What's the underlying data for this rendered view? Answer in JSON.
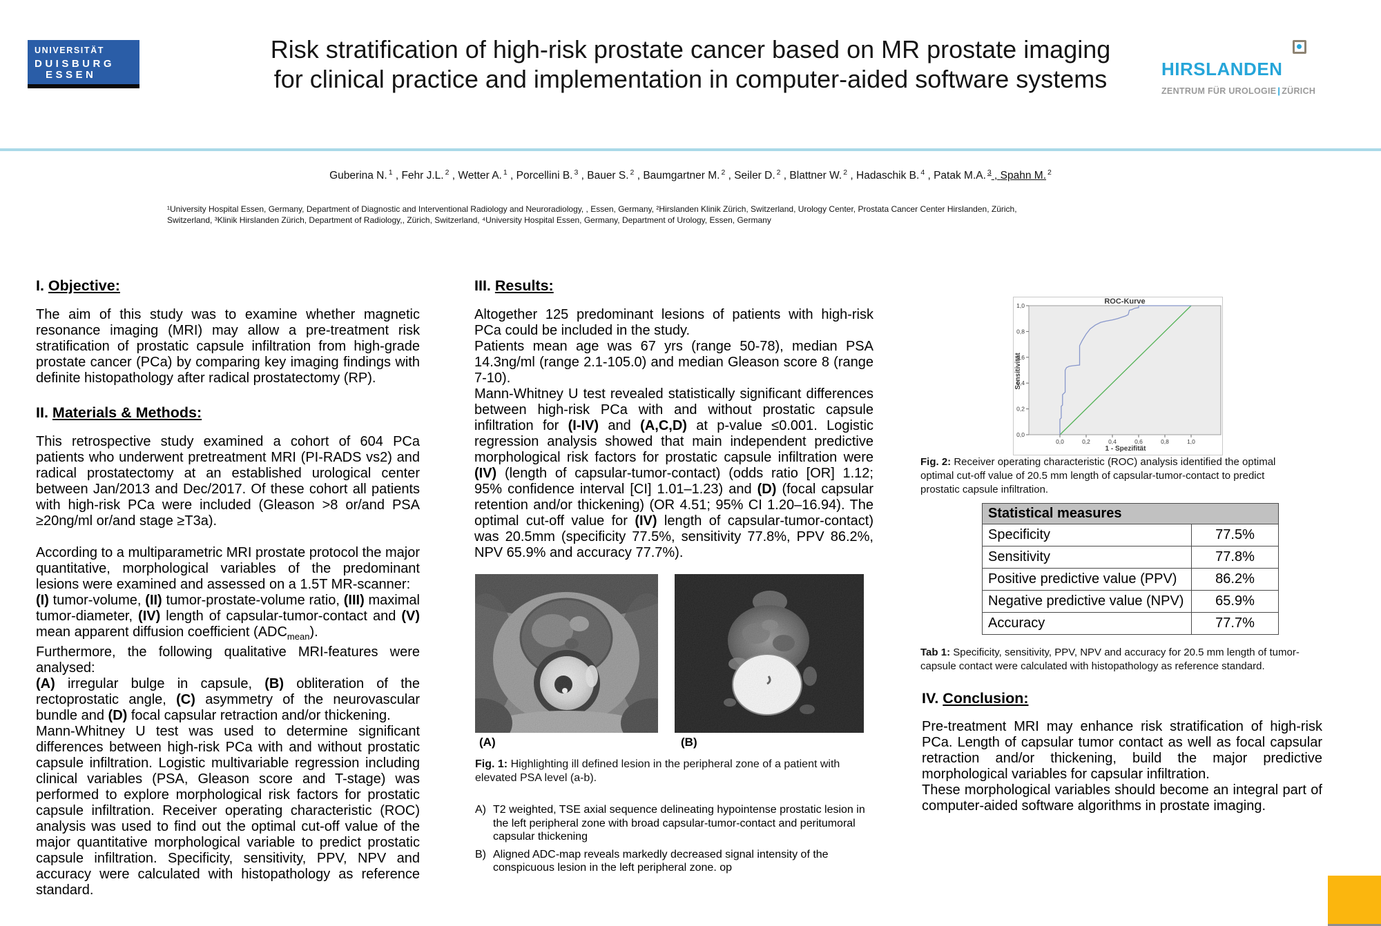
{
  "colors": {
    "due-blue": "#2a5da7",
    "hirs-cyan": "#25a5d9",
    "divider": "#a9d9e8",
    "thead-bg": "#c1c1c1",
    "accent-yellow": "#fbb60e"
  },
  "header": {
    "logo_left": {
      "line1": "UNIVERSITÄT",
      "line2": "DUISBURG",
      "line3": "ESSEN"
    },
    "title_line1": "Risk stratification of high-risk prostate cancer based on MR prostate imaging",
    "title_line2": "for clinical practice and implementation in computer-aided software systems",
    "logo_right": {
      "name": "HIRSLANDEN",
      "icon": "square-dot-logo-mark",
      "subtitle_left": "ZENTRUM FÜR UROLOGIE",
      "divider": "|",
      "subtitle_right": "ZÜRICH"
    }
  },
  "authors": [
    {
      "name": "Guberina N.",
      "sup": "1"
    },
    {
      "name": "Fehr J.L.",
      "sup": "2"
    },
    {
      "name": "Wetter A.",
      "sup": "1"
    },
    {
      "name": "Porcellini B.",
      "sup": "3"
    },
    {
      "name": "Bauer S.",
      "sup": "2"
    },
    {
      "name": "Baumgartner M.",
      "sup": "2"
    },
    {
      "name": "Seiler D.",
      "sup": "2"
    },
    {
      "name": "Blattner W.",
      "sup": "2"
    },
    {
      "name": "Hadaschik B.",
      "sup": "4"
    },
    {
      "name": "Patak M.A.",
      "sup": "3",
      "u": true
    },
    {
      "name": "Spahn M.",
      "sup": "2",
      "u_name": true
    }
  ],
  "affiliations": {
    "line1": "¹University Hospital Essen, Germany, Department of Diagnostic and Interventional Radiology and Neuroradiology, , Essen, Germany, ²Hirslanden Klinik Zürich, Switzerland, Urology Center, Prostata Cancer Center Hirslanden, Zürich,",
    "line2": "Switzerland, ³Klinik Hirslanden Zürich, Department of Radiology,, Zürich, Switzerland, ⁴University Hospital Essen, Germany, Department of Urology, Essen, Germany"
  },
  "sections": {
    "objective": {
      "heading_num": "I. ",
      "heading": "Objective:",
      "paragraphs": [
        {
          "segments": [
            {
              "t": "The aim of this study was to examine whether magnetic resonance imaging (MRI) may allow a pre-treatment risk stratification of prostatic capsule infiltration from high-grade prostate cancer (PCa) by comparing key imaging findings with definite histopathology after radical prostatectomy (RP)."
            }
          ]
        }
      ]
    },
    "methods": {
      "heading_num": "II. ",
      "heading": "Materials & Methods:",
      "paragraphs": [
        {
          "segments": [
            {
              "t": "This retrospective study examined a cohort of 604 PCa patients who underwent pretreatment MRI (PI-RADS vs2) and radical prostatectomy at an established urological center between Jan/2013 and Dec/2017. Of these cohort all patients with high-risk PCa were included (Gleason >8 or/and PSA ≥20ng/ml or/and stage ≥T3a)."
            }
          ]
        },
        {
          "gap": true,
          "segments": [
            {
              "t": "According to a multiparametric MRI prostate protocol the major quantitative, morphological variables of the predominant lesions were examined and assessed on a 1.5T MR-scanner:"
            }
          ]
        },
        {
          "segments": [
            {
              "t": "(I)",
              "b": true
            },
            {
              "t": " tumor-volume, "
            },
            {
              "t": "(II)",
              "b": true
            },
            {
              "t": " tumor-prostate-volume ratio, "
            },
            {
              "t": "(III)",
              "b": true
            },
            {
              "t": " maximal tumor-diameter, "
            },
            {
              "t": "(IV)",
              "b": true
            },
            {
              "t": " length of capsular-tumor-contact and "
            },
            {
              "t": "(V)",
              "b": true
            },
            {
              "t": " mean apparent diffusion coefficient (ADC"
            },
            {
              "t": "mean",
              "sub": true
            },
            {
              "t": ")."
            }
          ]
        },
        {
          "segments": [
            {
              "t": "Furthermore, the following qualitative MRI-features were analysed:"
            }
          ]
        },
        {
          "segments": [
            {
              "t": "(A)",
              "b": true
            },
            {
              "t": " irregular bulge in capsule, "
            },
            {
              "t": "(B)",
              "b": true
            },
            {
              "t": " obliteration of the rectoprostatic angle, "
            },
            {
              "t": "(C)",
              "b": true
            },
            {
              "t": " asymmetry of the neurovascular bundle and "
            },
            {
              "t": "(D)",
              "b": true
            },
            {
              "t": " focal capsular retraction and/or thickening."
            }
          ]
        },
        {
          "segments": [
            {
              "t": "Mann-Whitney U test was used to determine significant differences between high-risk PCa with and without prostatic capsule infiltration. Logistic multivariable regression including clinical variables (PSA, Gleason score and T-stage) was performed to explore morphological risk factors for prostatic capsule infiltration. Receiver operating characteristic (ROC) analysis was used to find out the optimal cut-off value of the major quantitative morphological variable to predict prostatic capsule infiltration. Specificity, sensitivity, PPV, NPV and accuracy were calculated with histopathology as reference standard."
            }
          ]
        }
      ]
    },
    "results": {
      "heading_num": "III. ",
      "heading": "Results:",
      "paragraphs": [
        {
          "segments": [
            {
              "t": "Altogether 125 predominant lesions of patients with high-risk PCa could be included in the study."
            }
          ]
        },
        {
          "segments": [
            {
              "t": "Patients mean age was 67 yrs (range 50-78), median PSA 14.3ng/ml (range 2.1-105.0) and median Gleason score 8 (range 7-10)."
            }
          ]
        },
        {
          "segments": [
            {
              "t": "Mann-Whitney U test revealed statistically significant differences between high-risk PCa with and without prostatic capsule infiltration for "
            },
            {
              "t": "(I-IV)",
              "b": true
            },
            {
              "t": " and "
            },
            {
              "t": "(A,C,D)",
              "b": true
            },
            {
              "t": " at p-value ≤0.001. Logistic regression analysis showed that main independent predictive morphological risk factors for prostatic capsule infiltration were "
            },
            {
              "t": "(IV)",
              "b": true
            },
            {
              "t": " (length of capsular-tumor-contact) (odds ratio [OR] 1.12; 95% confidence interval [CI] 1.01–1.23) and "
            },
            {
              "t": "(D)",
              "b": true
            },
            {
              "t": " (focal capsular retention and/or thickening) (OR 4.51; 95% CI 1.20–16.94). The optimal cut-off value for "
            },
            {
              "t": "(IV)",
              "b": true
            },
            {
              "t": " length of capsular-tumor-contact) was 20.5mm (specificity 77.5%, sensitivity 77.8%, PPV 86.2%, NPV 65.9% and accuracy 77.7%)."
            }
          ]
        }
      ]
    },
    "conclusion": {
      "heading_num": "IV. ",
      "heading": "Conclusion:",
      "paragraphs": [
        {
          "segments": [
            {
              "t": "Pre-treatment MRI may enhance risk stratification of high-risk PCa. Length of capsular tumor contact as well as focal capsular retraction and/or thickening, build the major predictive morphological variables for capsular infiltration."
            }
          ]
        },
        {
          "segments": [
            {
              "t": "These morphological variables should become an integral part of computer-aided software algorithms in prostate imaging."
            }
          ]
        }
      ]
    }
  },
  "fig1": {
    "label_a": "(A)",
    "label_b": "(B)",
    "caption_label": "Fig. 1:",
    "caption_text": "Highlighting ill defined lesion in the peripheral zone of a patient with elevated PSA level (a-b).",
    "notes": [
      {
        "prefix": "A)",
        "text": "T2 weighted, TSE axial sequence delineating hypointense prostatic lesion in the left peripheral zone with broad capsular-tumor-contact and peritumoral capsular thickening"
      },
      {
        "prefix": "B)",
        "text": "Aligned ADC-map reveals markedly decreased signal intensity of the conspicuous lesion in the left peripheral zone. op"
      }
    ]
  },
  "fig2": {
    "caption_label": "Fig. 2:",
    "caption_text": "Receiver operating characteristic (ROC) analysis identified the optimal optimal cut-off value of 20.5 mm length of capsular-tumor-contact to predict prostatic capsule infiltration."
  },
  "tab1": {
    "caption_label": "Tab 1:",
    "caption_text": "Specificity, sensitivity, PPV, NPV and accuracy for 20.5 mm length of tumor-capsule contact were calculated with histopathology as reference standard."
  },
  "stats_table": {
    "header": "Statistical measures",
    "rows": [
      [
        "Specificity",
        "77.5%"
      ],
      [
        "Sensitivity",
        "77.8%"
      ],
      [
        "Positive predictive value (PPV)",
        "86.2%"
      ],
      [
        "Negative predictive value (NPV)",
        "65.9%"
      ],
      [
        "Accuracy",
        "77.7%"
      ]
    ]
  },
  "chart_data": {
    "type": "line",
    "title": "ROC-Kurve",
    "xlabel": "1 - Spezifität",
    "ylabel": "Sensitivität",
    "xlim": [
      0,
      1
    ],
    "ylim": [
      0,
      1
    ],
    "xticks": [
      0,
      0.2,
      0.4,
      0.6,
      0.8,
      1.0
    ],
    "yticks": [
      0,
      0.2,
      0.4,
      0.6,
      0.8,
      1.0
    ],
    "tick_format": "decimal-comma",
    "grid": false,
    "panel_bg": "#ececec",
    "legend": "none",
    "series": [
      {
        "name": "reference-diagonal",
        "color": "#55b358",
        "points": [
          [
            0,
            0
          ],
          [
            1,
            1
          ]
        ]
      },
      {
        "name": "ROC curve (length of capsular-tumor-contact)",
        "color": "#8897cb",
        "points": [
          [
            0,
            0
          ],
          [
            0,
            0.12
          ],
          [
            0.01,
            0.13
          ],
          [
            0.01,
            0.22
          ],
          [
            0.02,
            0.23
          ],
          [
            0.02,
            0.31
          ],
          [
            0.04,
            0.33
          ],
          [
            0.04,
            0.5
          ],
          [
            0.05,
            0.52
          ],
          [
            0.07,
            0.53
          ],
          [
            0.1,
            0.535
          ],
          [
            0.15,
            0.54
          ],
          [
            0.15,
            0.69
          ],
          [
            0.17,
            0.73
          ],
          [
            0.2,
            0.78
          ],
          [
            0.23,
            0.82
          ],
          [
            0.27,
            0.85
          ],
          [
            0.31,
            0.87
          ],
          [
            0.35,
            0.88
          ],
          [
            0.4,
            0.89
          ],
          [
            0.44,
            0.9
          ],
          [
            0.47,
            0.91
          ],
          [
            0.5,
            0.92
          ],
          [
            0.52,
            0.93
          ],
          [
            0.53,
            0.965
          ],
          [
            0.55,
            0.97
          ],
          [
            0.57,
            0.98
          ],
          [
            0.6,
            0.985
          ],
          [
            0.6,
            1
          ],
          [
            1,
            1
          ]
        ]
      }
    ]
  }
}
